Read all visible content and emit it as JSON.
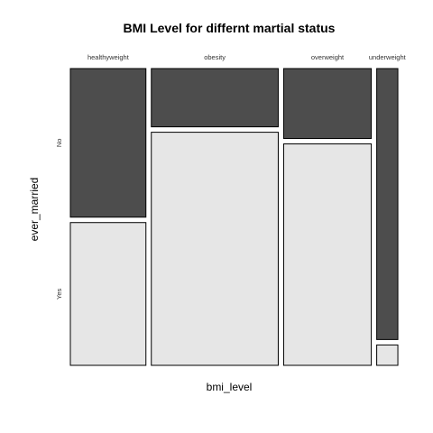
{
  "chart_data": {
    "type": "mosaic",
    "title": "BMI Level for differnt martial status",
    "xlabel": "bmi_level",
    "ylabel": "ever_married",
    "categories": [
      "healthyweight",
      "obesity",
      "overweight",
      "underweight"
    ],
    "category_proportions": [
      0.25,
      0.42,
      0.29,
      0.07
    ],
    "levels": [
      "No",
      "Yes"
    ],
    "proportions_by_category": {
      "healthyweight": {
        "No": 0.51,
        "Yes": 0.49
      },
      "obesity": {
        "No": 0.2,
        "Yes": 0.8
      },
      "overweight": {
        "No": 0.24,
        "Yes": 0.76
      },
      "underweight": {
        "No": 0.93,
        "Yes": 0.07
      }
    },
    "colors": {
      "No": "#4d4d4d",
      "Yes": "#e6e6e6"
    }
  }
}
